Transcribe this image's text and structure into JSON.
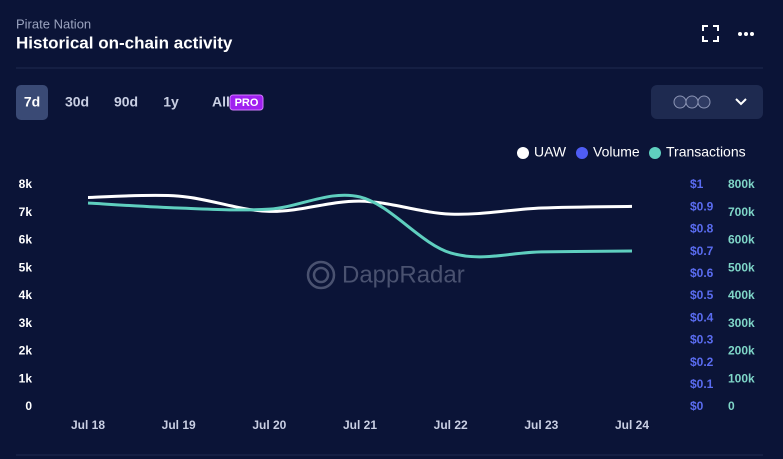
{
  "header": {
    "subtitle": "Pirate Nation",
    "title": "Historical on-chain activity"
  },
  "tabs": [
    "7d",
    "30d",
    "90d",
    "1y",
    "All"
  ],
  "pro_badge": "PRO",
  "watermark": "DappRadar",
  "chart_data": {
    "type": "line",
    "categories": [
      "Jul 18",
      "Jul 19",
      "Jul 20",
      "Jul 21",
      "Jul 22",
      "Jul 23",
      "Jul 24"
    ],
    "series": [
      {
        "name": "UAW",
        "color": "#ffffff",
        "axis": "y",
        "values": [
          7550,
          7600,
          7050,
          7420,
          6950,
          7170,
          7230
        ]
      },
      {
        "name": "Volume",
        "color": "#4f5df5",
        "axis": "y2",
        "values": [
          null,
          null,
          null,
          null,
          null,
          null,
          null
        ]
      },
      {
        "name": "Transactions",
        "color": "#5fcfbf",
        "axis": "y3",
        "values": [
          735000,
          717000,
          713000,
          757000,
          555000,
          559000,
          562000
        ]
      }
    ],
    "ylim": [
      0,
      8000
    ],
    "yticks": [
      0,
      {
        "value": 1000,
        "label": "1k"
      },
      {
        "value": 2000,
        "label": "2k"
      },
      {
        "value": 3000,
        "label": "3k"
      },
      {
        "value": 4000,
        "label": "4k"
      },
      {
        "value": 5000,
        "label": "5k"
      },
      {
        "value": 6000,
        "label": "6k"
      },
      {
        "value": 7000,
        "label": "7k"
      },
      {
        "value": 8000,
        "label": "8k"
      }
    ],
    "y2lim": [
      0,
      1
    ],
    "y2ticks": [
      {
        "value": 0,
        "label": "$0"
      },
      {
        "value": 0.1,
        "label": "$0.1"
      },
      {
        "value": 0.2,
        "label": "$0.2"
      },
      {
        "value": 0.3,
        "label": "$0.3"
      },
      {
        "value": 0.4,
        "label": "$0.4"
      },
      {
        "value": 0.5,
        "label": "$0.5"
      },
      {
        "value": 0.6,
        "label": "$0.6"
      },
      {
        "value": 0.7,
        "label": "$0.7"
      },
      {
        "value": 0.8,
        "label": "$0.8"
      },
      {
        "value": 0.9,
        "label": "$0.9"
      },
      {
        "value": 1,
        "label": "$1"
      }
    ],
    "y3lim": [
      0,
      800000
    ],
    "y3ticks": [
      0,
      {
        "value": 100000,
        "label": "100k"
      },
      {
        "value": 200000,
        "label": "200k"
      },
      {
        "value": 300000,
        "label": "300k"
      },
      {
        "value": 400000,
        "label": "400k"
      },
      {
        "value": 500000,
        "label": "500k"
      },
      {
        "value": 600000,
        "label": "600k"
      },
      {
        "value": 700000,
        "label": "700k"
      },
      {
        "value": 800000,
        "label": "800k"
      }
    ],
    "legend": "top-right",
    "grid": false
  }
}
